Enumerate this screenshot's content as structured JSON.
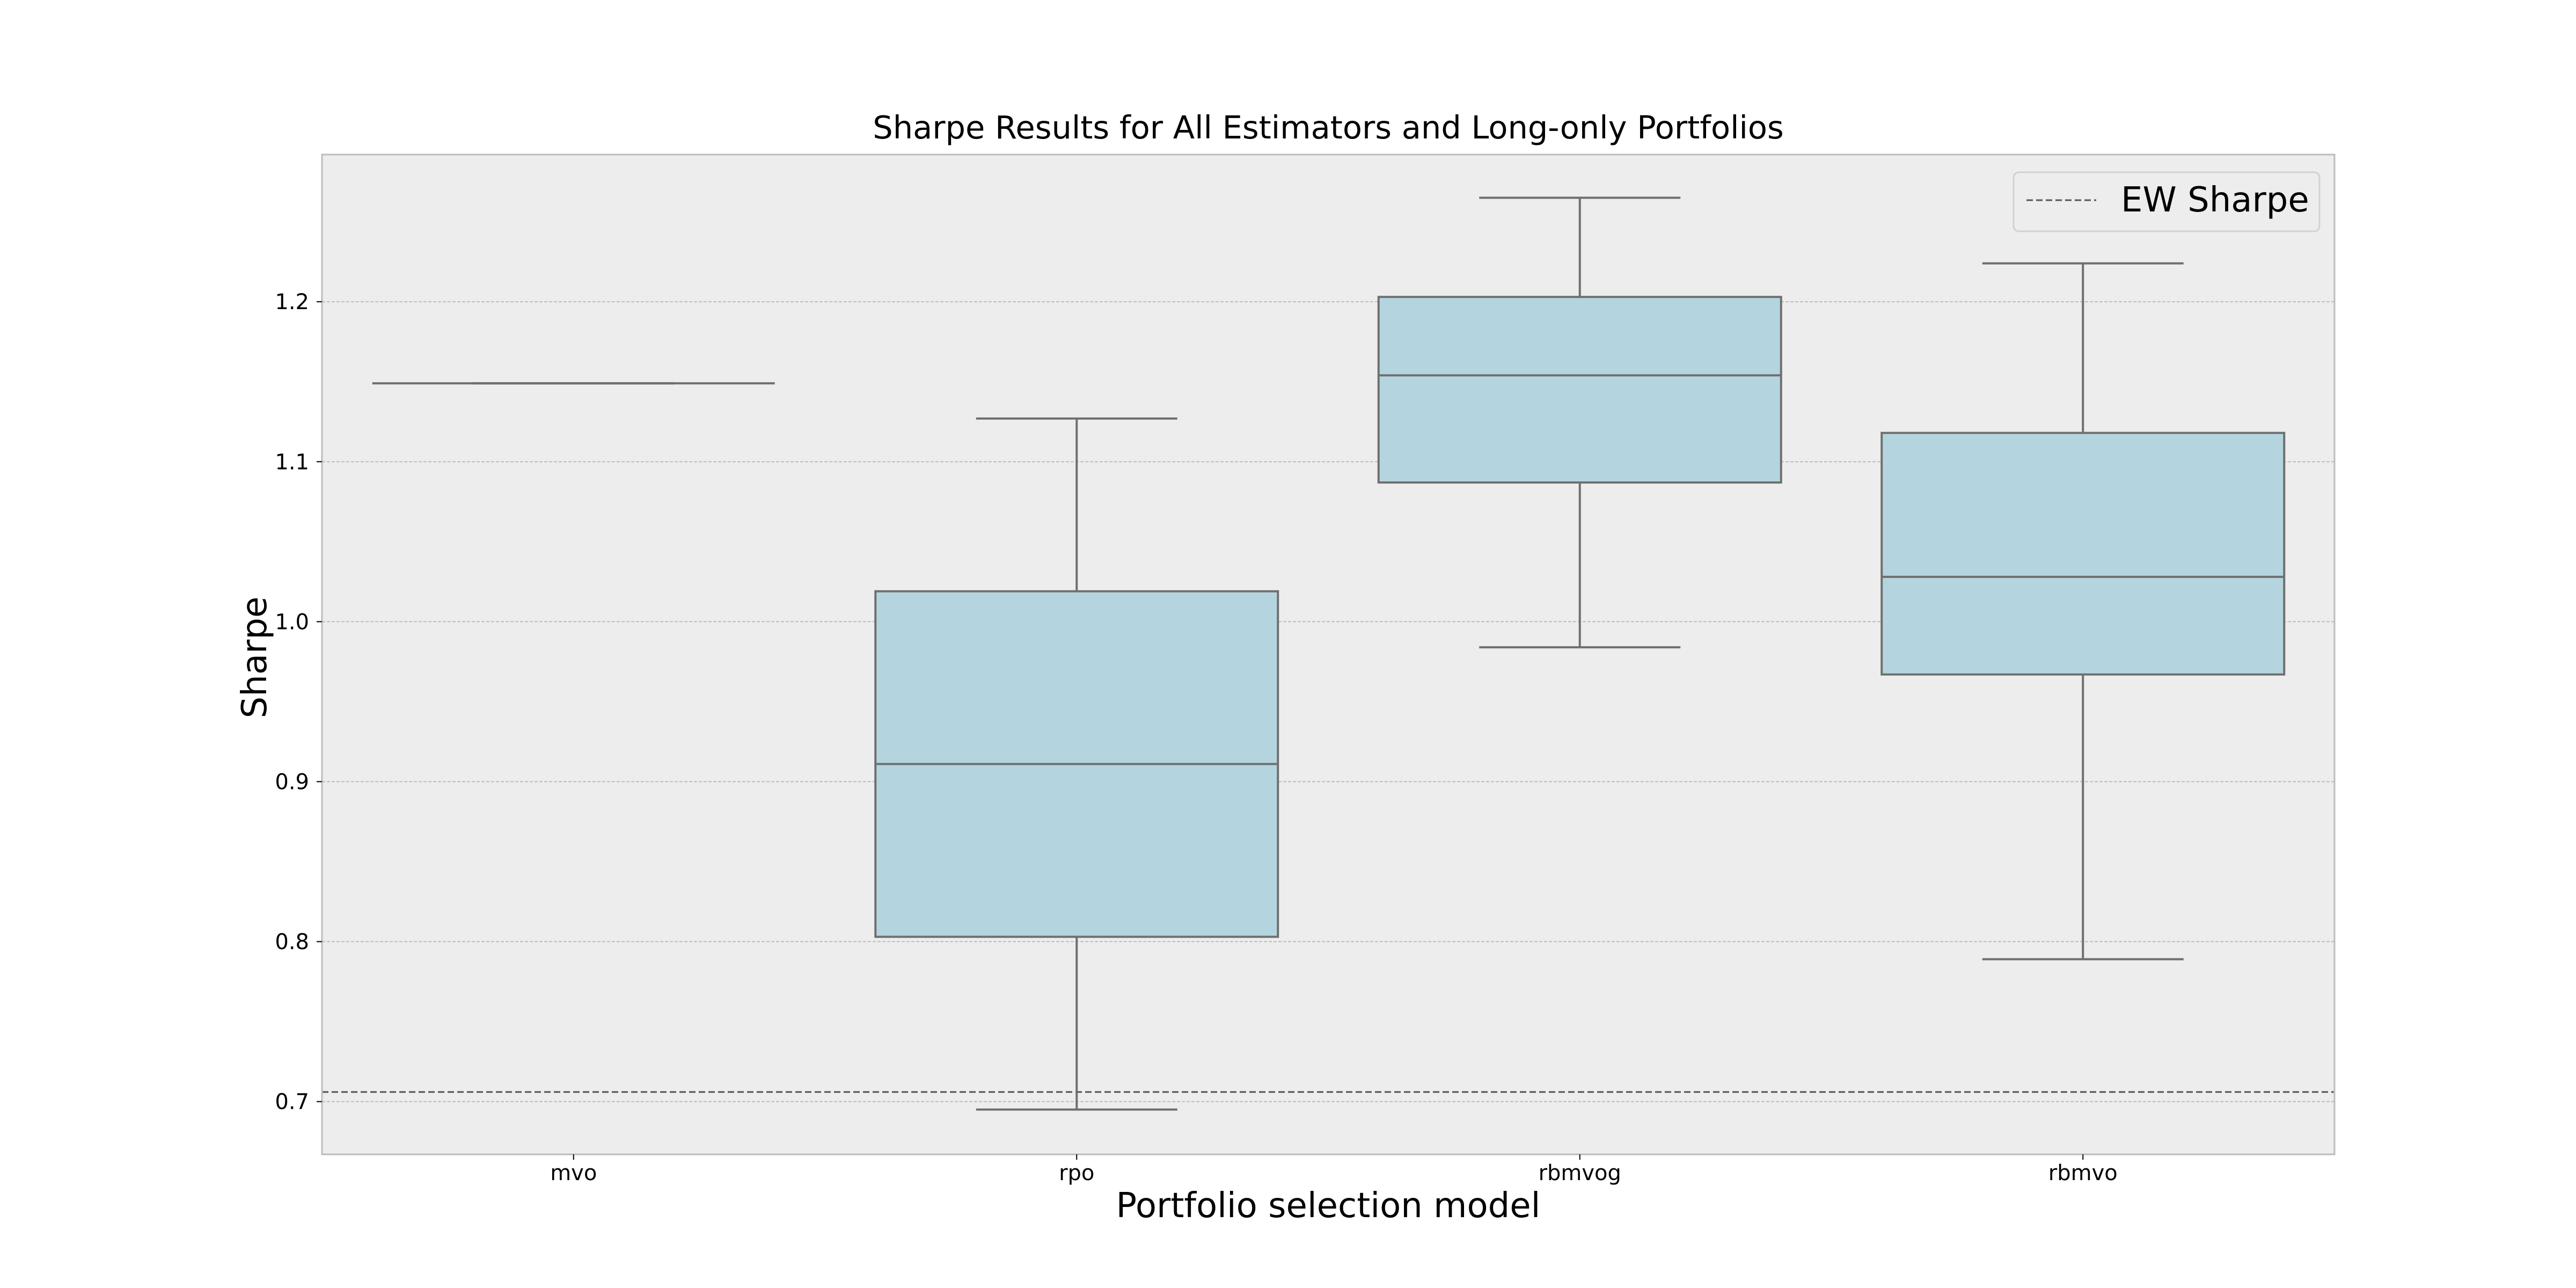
{
  "chart_data": {
    "type": "box",
    "title": "Sharpe Results for All Estimators and Long-only Portfolios",
    "xlabel": "Portfolio selection model",
    "ylabel": "Sharpe",
    "categories": [
      "mvo",
      "rpo",
      "rbmvog",
      "rbmvo"
    ],
    "boxes": [
      {
        "category": "mvo",
        "min": 1.149,
        "q1": 1.149,
        "median": 1.149,
        "q3": 1.149,
        "max": 1.149
      },
      {
        "category": "rpo",
        "min": 0.695,
        "q1": 0.803,
        "median": 0.911,
        "q3": 1.019,
        "max": 1.127
      },
      {
        "category": "rbmvog",
        "min": 0.984,
        "q1": 1.087,
        "median": 1.154,
        "q3": 1.203,
        "max": 1.265
      },
      {
        "category": "rbmvo",
        "min": 0.789,
        "q1": 0.967,
        "median": 1.028,
        "q3": 1.118,
        "max": 1.224
      }
    ],
    "ylim": [
      0.667,
      1.292
    ],
    "yticks": [
      "0.7",
      "0.8",
      "0.9",
      "1.0",
      "1.1",
      "1.2"
    ],
    "reference_line": {
      "name": "EW Sharpe",
      "value": 0.706,
      "style": "dashed"
    },
    "legend": {
      "entries": [
        "EW Sharpe"
      ],
      "placement": "top-right"
    },
    "grid": {
      "y": true,
      "x": false
    },
    "colors": {
      "background": "#ededed",
      "box_fill": "#b4d5df",
      "box_edge": "#6f6f6f",
      "grid": "#bdbdbd",
      "reference_line": "#555555",
      "frame": "#bcbcbc"
    }
  }
}
